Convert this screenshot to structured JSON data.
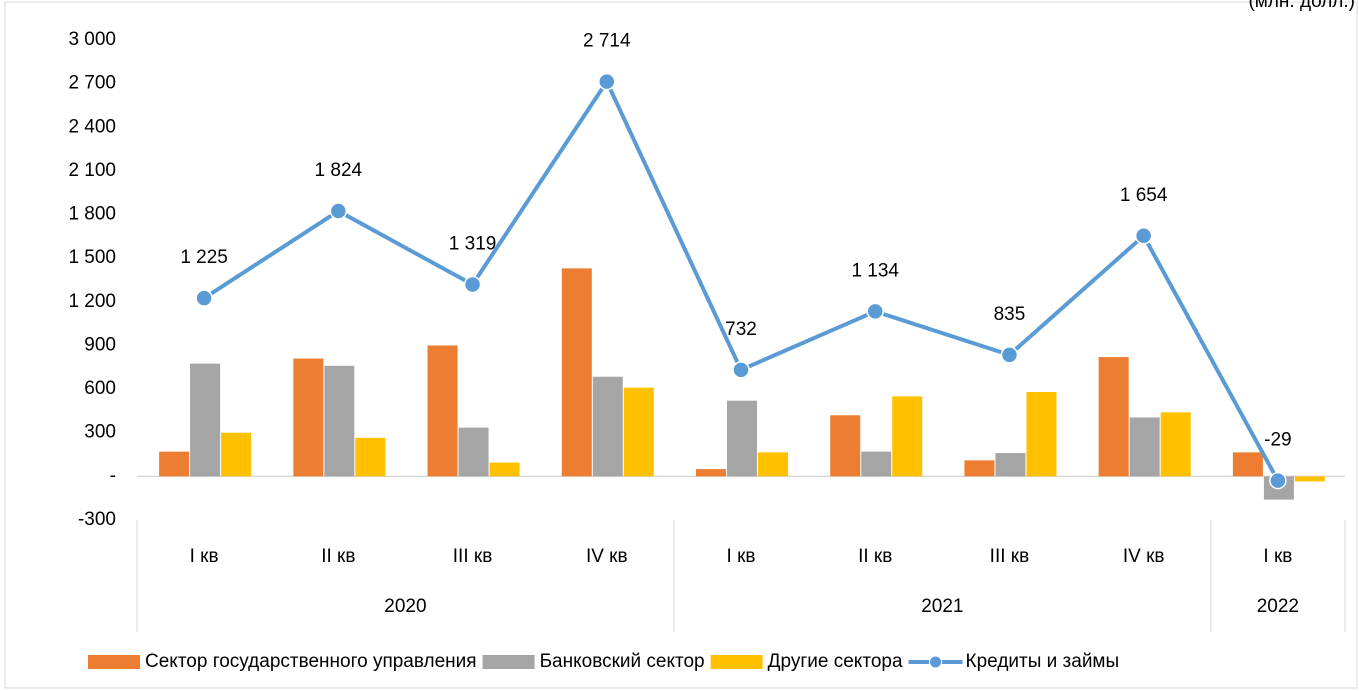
{
  "chart_data": {
    "type": "bar_line",
    "unit_note": "(млн. долл.)",
    "groups": [
      {
        "name": "2020",
        "categories": [
          "I кв",
          "II кв",
          "III кв",
          "IV кв"
        ]
      },
      {
        "name": "2021",
        "categories": [
          "I кв",
          "II кв",
          "III кв",
          "IV кв"
        ]
      },
      {
        "name": "2022",
        "categories": [
          "I кв"
        ]
      }
    ],
    "series": [
      {
        "name": "Сектор государственного управления",
        "type": "bar",
        "color": "#ed7d31",
        "values": [
          170,
          810,
          900,
          1430,
          50,
          420,
          110,
          820,
          165
        ]
      },
      {
        "name": "Банковский сектор",
        "type": "bar",
        "color": "#a5a5a5",
        "values": [
          775,
          760,
          335,
          685,
          520,
          170,
          160,
          405,
          -160
        ]
      },
      {
        "name": "Другие сектора",
        "type": "bar",
        "color": "#ffc000",
        "values": [
          300,
          265,
          95,
          610,
          165,
          550,
          580,
          440,
          -35
        ]
      },
      {
        "name": "Кредиты и займы",
        "type": "line",
        "color": "#5b9bd5",
        "values": [
          1225,
          1824,
          1319,
          2714,
          732,
          1134,
          835,
          1654,
          -29
        ],
        "value_labels": [
          "1 225",
          "1 824",
          "1 319",
          "2 714",
          "732",
          "1 134",
          "835",
          "1 654",
          "-29"
        ]
      }
    ],
    "ylim": [
      -300,
      3000
    ],
    "yticks": [
      {
        "value": -300,
        "label": "-300"
      },
      {
        "value": 0,
        "label": "-"
      },
      {
        "value": 300,
        "label": "300"
      },
      {
        "value": 600,
        "label": "600"
      },
      {
        "value": 900,
        "label": "900"
      },
      {
        "value": 1200,
        "label": "1 200"
      },
      {
        "value": 1500,
        "label": "1 500"
      },
      {
        "value": 1800,
        "label": "1 800"
      },
      {
        "value": 2100,
        "label": "2 100"
      },
      {
        "value": 2400,
        "label": "2 400"
      },
      {
        "value": 2700,
        "label": "2 700"
      },
      {
        "value": 3000,
        "label": "3 000"
      }
    ],
    "grid": false,
    "legend": "bottom"
  }
}
